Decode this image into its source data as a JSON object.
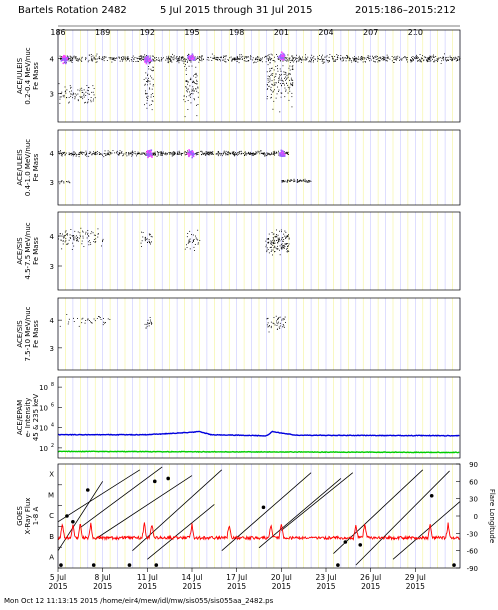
{
  "header": {
    "rotation": "Bartels Rotation 2482",
    "dates": "5 Jul 2015 through 31 Jul 2015",
    "doy_range": "2015:186–2015:212"
  },
  "top_doy_ticks": [
    "186",
    "189",
    "192",
    "195",
    "198",
    "201",
    "204",
    "207",
    "210"
  ],
  "chart_data": [
    {
      "type": "scatter",
      "panel": "ULEIS 0.2-0.4",
      "ylabel_lines": [
        "ACE/ULEIS",
        "0.2-0.4 MeV/nuc",
        "Fe Mass"
      ],
      "yticks": [
        "4",
        "3"
      ],
      "ylim": [
        2.2,
        4.8
      ],
      "x_range_doy": [
        186,
        213
      ],
      "bands": [
        {
          "x": [
            186.0,
            213.0
          ],
          "center": 4.0,
          "spread": 0.12,
          "density": "medium"
        },
        {
          "x": [
            186.0,
            188.5
          ],
          "center": 3.0,
          "spread": 0.35,
          "density": "medium"
        },
        {
          "x": [
            191.7,
            192.4
          ],
          "center": 3.3,
          "spread": 0.9,
          "density": "high"
        },
        {
          "x": [
            194.4,
            195.4
          ],
          "center": 3.3,
          "spread": 0.9,
          "density": "high"
        },
        {
          "x": [
            200.0,
            201.8
          ],
          "center": 3.4,
          "spread": 0.8,
          "density": "high"
        }
      ],
      "hotspots": [
        {
          "x": 186.4,
          "y": 4.0
        },
        {
          "x": 192.0,
          "y": 4.0
        },
        {
          "x": 194.9,
          "y": 4.05
        },
        {
          "x": 201.0,
          "y": 4.05
        }
      ]
    },
    {
      "type": "scatter",
      "panel": "ULEIS 0.4-1.0",
      "ylabel_lines": [
        "ACE/ULEIS",
        "0.4-1.0 MeV/nuc",
        "Fe Mass"
      ],
      "yticks": [
        "4",
        "3"
      ],
      "ylim": [
        2.2,
        4.8
      ],
      "x_range_doy": [
        186,
        213
      ],
      "bands": [
        {
          "x": [
            186.0,
            201.5
          ],
          "center": 4.0,
          "spread": 0.1,
          "density": "medium"
        },
        {
          "x": [
            186.0,
            187.0
          ],
          "center": 3.0,
          "spread": 0.1,
          "density": "low"
        },
        {
          "x": [
            201.0,
            203.0
          ],
          "center": 3.05,
          "spread": 0.06,
          "density": "medium"
        }
      ],
      "hotspots": [
        {
          "x": 192.1,
          "y": 4.0
        },
        {
          "x": 194.9,
          "y": 4.0
        },
        {
          "x": 201.0,
          "y": 4.0
        }
      ]
    },
    {
      "type": "scatter",
      "panel": "SIS 4.5-7.5",
      "ylabel_lines": [
        "ACE/SIS",
        "4.5-7.5 MeV/nuc",
        "Fe Mass"
      ],
      "yticks": [
        "4",
        "3"
      ],
      "ylim": [
        2.2,
        4.8
      ],
      "x_range_doy": [
        186,
        213
      ],
      "bands": [
        {
          "x": [
            186.0,
            189.0
          ],
          "center": 3.95,
          "spread": 0.35,
          "density": "medium"
        },
        {
          "x": [
            191.5,
            192.3
          ],
          "center": 3.9,
          "spread": 0.35,
          "density": "medium"
        },
        {
          "x": [
            194.5,
            195.5
          ],
          "center": 3.9,
          "spread": 0.4,
          "density": "medium"
        },
        {
          "x": [
            199.9,
            201.5
          ],
          "center": 3.8,
          "spread": 0.5,
          "density": "high"
        }
      ],
      "hotspots": []
    },
    {
      "type": "scatter",
      "panel": "SIS 7.5-10",
      "ylabel_lines": [
        "ACE/SIS",
        "7.5-10 MeV/nuc",
        "Fe Mass"
      ],
      "yticks": [
        "4",
        "3"
      ],
      "ylim": [
        2.2,
        4.8
      ],
      "x_range_doy": [
        186,
        213
      ],
      "bands": [
        {
          "x": [
            186.0,
            189.5
          ],
          "center": 4.0,
          "spread": 0.25,
          "density": "low"
        },
        {
          "x": [
            191.8,
            192.3
          ],
          "center": 3.9,
          "spread": 0.3,
          "density": "medium"
        },
        {
          "x": [
            200.0,
            201.3
          ],
          "center": 3.9,
          "spread": 0.35,
          "density": "medium"
        }
      ],
      "hotspots": []
    },
    {
      "type": "line",
      "panel": "EPAM",
      "ylabel_lines": [
        "ACE/EPAM",
        "e- Intensity",
        "45 & 235 keV"
      ],
      "yscale": "log",
      "ylim_exp": [
        1,
        9
      ],
      "yticks": [
        {
          "base": "10",
          "exp": "8"
        },
        {
          "base": "10",
          "exp": "6"
        },
        {
          "base": "10",
          "exp": "4"
        },
        {
          "base": "10",
          "exp": "2"
        }
      ],
      "series": [
        {
          "color": "#0000dd",
          "level_exp": 3.25,
          "features": [
            {
              "x": 186.0,
              "y": 3.3
            },
            {
              "x": 192.0,
              "y": 3.3
            },
            {
              "x": 194.5,
              "y": 3.5
            },
            {
              "x": 195.5,
              "y": 3.6
            },
            {
              "x": 196.3,
              "y": 3.3
            },
            {
              "x": 200.0,
              "y": 3.2
            },
            {
              "x": 200.4,
              "y": 3.6
            },
            {
              "x": 202.0,
              "y": 3.25
            },
            {
              "x": 213.0,
              "y": 3.2
            }
          ]
        },
        {
          "color": "#00cc00",
          "level_exp": 1.6,
          "features": [
            {
              "x": 186.0,
              "y": 1.65
            },
            {
              "x": 213.0,
              "y": 1.55
            }
          ]
        }
      ]
    },
    {
      "type": "line",
      "panel": "GOES",
      "ylabel_lines": [
        "GOES",
        "X-Ray Flux",
        "1-8 A"
      ],
      "classes": [
        "X",
        "M",
        "C",
        "B",
        "A"
      ],
      "right_axis_label": "Flare Longitude",
      "right_ticks": [
        "90",
        "60",
        "30",
        "0",
        "-30",
        "-60",
        "-90"
      ],
      "flux_series": {
        "color": "#ff0000",
        "baseline_class": "B",
        "spikes_doy": [
          186.3,
          187.0,
          187.5,
          188.2,
          191.8,
          192.3,
          195.0,
          197.5,
          200.3,
          201.0,
          206.0,
          206.6,
          211.0,
          212.2
        ]
      },
      "longitude_tracks": [
        {
          "x": [
            186.0,
            189.0
          ],
          "lon": [
            -60,
            60
          ]
        },
        {
          "x": [
            186.0,
            191.5
          ],
          "lon": [
            -10,
            80
          ]
        },
        {
          "x": [
            187.5,
            193.0
          ],
          "lon": [
            -20,
            85
          ]
        },
        {
          "x": [
            188.5,
            195.0
          ],
          "lon": [
            -40,
            70
          ]
        },
        {
          "x": [
            191.0,
            197.0
          ],
          "lon": [
            -60,
            80
          ]
        },
        {
          "x": [
            192.0,
            196.5
          ],
          "lon": [
            -75,
            20
          ]
        },
        {
          "x": [
            197.0,
            203.0
          ],
          "lon": [
            -60,
            75
          ]
        },
        {
          "x": [
            199.5,
            205.0
          ],
          "lon": [
            -55,
            65
          ]
        },
        {
          "x": [
            201.0,
            205.8
          ],
          "lon": [
            -25,
            75
          ]
        },
        {
          "x": [
            204.5,
            210.5
          ],
          "lon": [
            -65,
            80
          ]
        },
        {
          "x": [
            206.0,
            212.3
          ],
          "lon": [
            -85,
            78
          ]
        },
        {
          "x": [
            208.5,
            213.0
          ],
          "lon": [
            -75,
            25
          ]
        }
      ],
      "flare_markers": [
        {
          "x": 186.2,
          "lon": -85
        },
        {
          "x": 188.4,
          "lon": -85
        },
        {
          "x": 190.8,
          "lon": -85
        },
        {
          "x": 192.6,
          "lon": -85
        },
        {
          "x": 204.8,
          "lon": -85
        },
        {
          "x": 212.6,
          "lon": -85
        },
        {
          "x": 187.0,
          "lon": -10
        },
        {
          "x": 186.6,
          "lon": 0
        },
        {
          "x": 188.0,
          "lon": 45
        },
        {
          "x": 192.5,
          "lon": 60
        },
        {
          "x": 193.4,
          "lon": 65
        },
        {
          "x": 199.8,
          "lon": 15
        },
        {
          "x": 205.3,
          "lon": -45
        },
        {
          "x": 206.3,
          "lon": -50
        },
        {
          "x": 211.1,
          "lon": 35
        }
      ]
    }
  ],
  "x_axis": {
    "ticks": [
      {
        "doy": 186,
        "label": "5 Jul",
        "year": "2015"
      },
      {
        "doy": 189,
        "label": "8 Jul",
        "year": "2015"
      },
      {
        "doy": 192,
        "label": "11 Jul",
        "year": "2015"
      },
      {
        "doy": 195,
        "label": "14 Jul",
        "year": "2015"
      },
      {
        "doy": 198,
        "label": "17 Jul",
        "year": "2015"
      },
      {
        "doy": 201,
        "label": "20 Jul",
        "year": "2015"
      },
      {
        "doy": 204,
        "label": "23 Jul",
        "year": "2015"
      },
      {
        "doy": 207,
        "label": "26 Jul",
        "year": "2015"
      },
      {
        "doy": 210,
        "label": "29 Jul",
        "year": "2015"
      }
    ]
  },
  "footer": "Mon Oct 12 11:13:15 2015   /home/eir4/mew/idl/mw/sis055/sis055aa_2482.ps"
}
